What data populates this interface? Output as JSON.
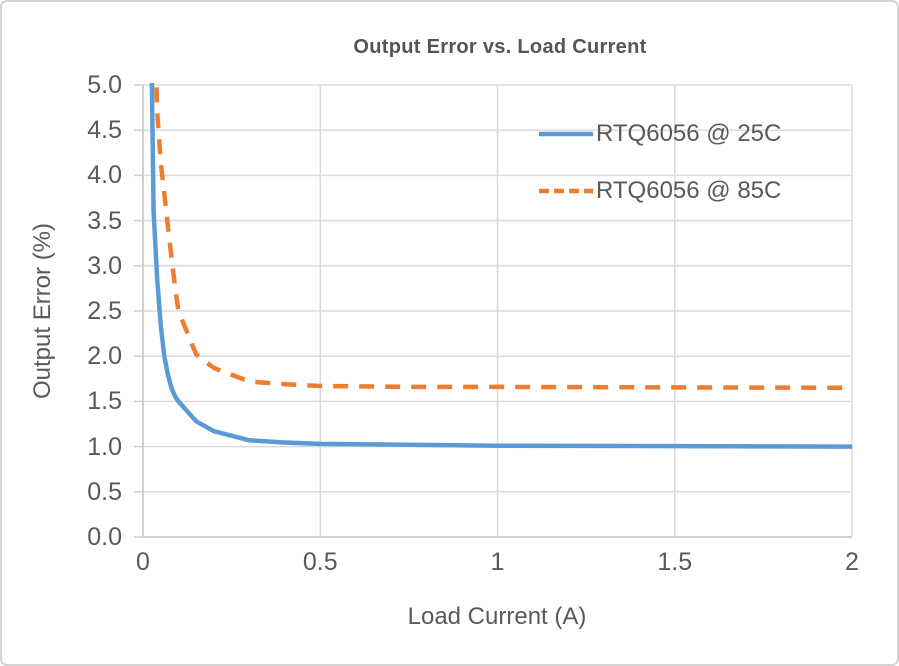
{
  "chart_data": {
    "type": "line",
    "title": "Output Error vs. Load Current",
    "xlabel": "Load Current (A)",
    "ylabel": "Output Error (%)",
    "xlim": [
      0,
      2
    ],
    "ylim": [
      0,
      5
    ],
    "x_ticks": [
      0,
      0.5,
      1,
      1.5,
      2
    ],
    "x_tick_labels": [
      "0",
      "0.5",
      "1",
      "1.5",
      "2"
    ],
    "y_ticks": [
      0,
      0.5,
      1,
      1.5,
      2,
      2.5,
      3,
      3.5,
      4,
      4.5,
      5
    ],
    "y_tick_labels": [
      "0.0",
      "0.5",
      "1.0",
      "1.5",
      "2.0",
      "2.5",
      "3.0",
      "3.5",
      "4.0",
      "4.5",
      "5.0"
    ],
    "grid": true,
    "legend_position": "inside-top-right",
    "colors": {
      "gridline": "#dbdbdb",
      "axis": "#cfcfcf",
      "tick_text": "#595959",
      "title_text": "#555555",
      "series_25c": "#5B9BD5",
      "series_85c": "#ED7D31"
    },
    "series": [
      {
        "name": "RTQ6056 @ 25C",
        "color": "#5B9BD5",
        "line_style": "solid",
        "points": [
          [
            0.01,
            13
          ],
          [
            0.02,
            6.5
          ],
          [
            0.03,
            3.6
          ],
          [
            0.04,
            2.85
          ],
          [
            0.05,
            2.35
          ],
          [
            0.06,
            2.0
          ],
          [
            0.07,
            1.8
          ],
          [
            0.08,
            1.65
          ],
          [
            0.09,
            1.56
          ],
          [
            0.1,
            1.5
          ],
          [
            0.15,
            1.28
          ],
          [
            0.2,
            1.17
          ],
          [
            0.3,
            1.07
          ],
          [
            0.4,
            1.045
          ],
          [
            0.5,
            1.03
          ],
          [
            0.75,
            1.02
          ],
          [
            1.0,
            1.01
          ],
          [
            1.5,
            1.005
          ],
          [
            2.0,
            1.0
          ]
        ]
      },
      {
        "name": "RTQ6056 @ 85C",
        "color": "#ED7D31",
        "line_style": "dashed",
        "points": [
          [
            0.02,
            9
          ],
          [
            0.03,
            6.2
          ],
          [
            0.04,
            4.7
          ],
          [
            0.05,
            4.15
          ],
          [
            0.06,
            3.8
          ],
          [
            0.07,
            3.45
          ],
          [
            0.08,
            3.1
          ],
          [
            0.09,
            2.78
          ],
          [
            0.1,
            2.5
          ],
          [
            0.15,
            2.02
          ],
          [
            0.2,
            1.87
          ],
          [
            0.3,
            1.72
          ],
          [
            0.4,
            1.69
          ],
          [
            0.5,
            1.67
          ],
          [
            0.75,
            1.66
          ],
          [
            1.0,
            1.66
          ],
          [
            1.5,
            1.655
          ],
          [
            2.0,
            1.65
          ]
        ]
      }
    ]
  }
}
